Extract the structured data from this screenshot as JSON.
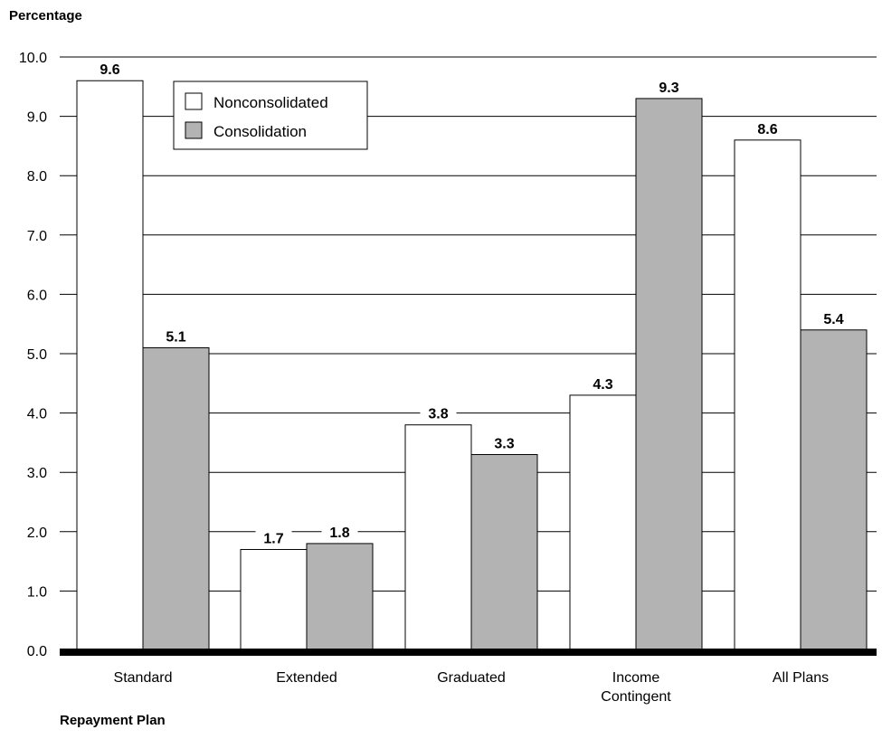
{
  "chart_data": {
    "type": "bar",
    "ylabel": "Percentage",
    "xlabel": "Repayment Plan",
    "categories": [
      "Standard",
      "Extended",
      "Graduated",
      "Income Contingent",
      "All Plans"
    ],
    "category_lines": [
      [
        "Standard"
      ],
      [
        "Extended"
      ],
      [
        "Graduated"
      ],
      [
        "Income",
        "Contingent"
      ],
      [
        "All Plans"
      ]
    ],
    "series": [
      {
        "name": "Nonconsolidated",
        "color": "#ffffff",
        "values": [
          9.6,
          1.7,
          3.8,
          4.3,
          8.6
        ]
      },
      {
        "name": "Consolidation",
        "color": "#b3b3b3",
        "values": [
          5.1,
          1.8,
          3.3,
          9.3,
          5.4
        ]
      }
    ],
    "ylim": [
      0,
      10
    ],
    "yticks": [
      "0.0",
      "1.0",
      "2.0",
      "3.0",
      "4.0",
      "5.0",
      "6.0",
      "7.0",
      "8.0",
      "9.0",
      "10.0"
    ],
    "value_labels": [
      [
        "9.6",
        "1.7",
        "3.8",
        "4.3",
        "8.6"
      ],
      [
        "5.1",
        "1.8",
        "3.3",
        "9.3",
        "5.4"
      ]
    ],
    "grid": true,
    "legend_position": "top-left"
  }
}
